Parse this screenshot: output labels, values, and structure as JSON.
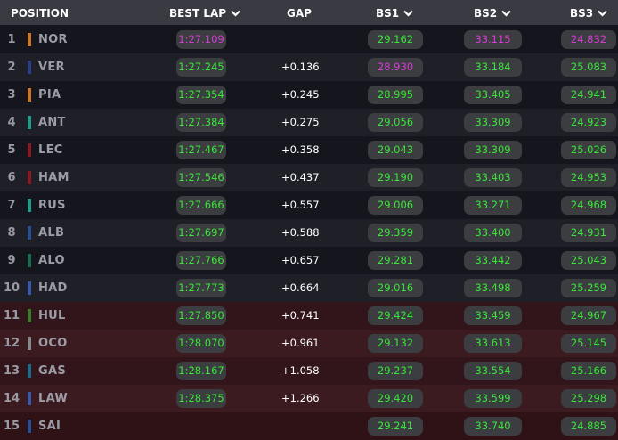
{
  "header": {
    "position": "POSITION",
    "best_lap": "BEST LAP",
    "gap": "GAP",
    "bs1": "BS1",
    "bs2": "BS2",
    "bs3": "BS3"
  },
  "colors": {
    "green": "#39e639",
    "purple": "#d93ad9"
  },
  "rows": [
    {
      "pos": "1",
      "driver": "NOR",
      "team_color": "#c8782a",
      "best": "1:27.109",
      "best_purple": true,
      "gap": "",
      "bs1": "29.162",
      "bs1_purple": false,
      "bs2": "33.115",
      "bs2_purple": true,
      "bs3": "24.832",
      "bs3_purple": true
    },
    {
      "pos": "2",
      "driver": "VER",
      "team_color": "#2b3f84",
      "best": "1:27.245",
      "best_purple": false,
      "gap": "+0.136",
      "bs1": "28.930",
      "bs1_purple": true,
      "bs2": "33.184",
      "bs2_purple": false,
      "bs3": "25.083",
      "bs3_purple": false
    },
    {
      "pos": "3",
      "driver": "PIA",
      "team_color": "#c8782a",
      "best": "1:27.354",
      "best_purple": false,
      "gap": "+0.245",
      "bs1": "28.995",
      "bs1_purple": false,
      "bs2": "33.405",
      "bs2_purple": false,
      "bs3": "24.941",
      "bs3_purple": false
    },
    {
      "pos": "4",
      "driver": "ANT",
      "team_color": "#1f9c8a",
      "best": "1:27.384",
      "best_purple": false,
      "gap": "+0.275",
      "bs1": "29.056",
      "bs1_purple": false,
      "bs2": "33.309",
      "bs2_purple": false,
      "bs3": "24.923",
      "bs3_purple": false
    },
    {
      "pos": "5",
      "driver": "LEC",
      "team_color": "#8a1a22",
      "best": "1:27.467",
      "best_purple": false,
      "gap": "+0.358",
      "bs1": "29.043",
      "bs1_purple": false,
      "bs2": "33.309",
      "bs2_purple": false,
      "bs3": "25.026",
      "bs3_purple": false
    },
    {
      "pos": "6",
      "driver": "HAM",
      "team_color": "#8a1a22",
      "best": "1:27.546",
      "best_purple": false,
      "gap": "+0.437",
      "bs1": "29.190",
      "bs1_purple": false,
      "bs2": "33.403",
      "bs2_purple": false,
      "bs3": "24.953",
      "bs3_purple": false
    },
    {
      "pos": "7",
      "driver": "RUS",
      "team_color": "#1f9c8a",
      "best": "1:27.666",
      "best_purple": false,
      "gap": "+0.557",
      "bs1": "29.006",
      "bs1_purple": false,
      "bs2": "33.271",
      "bs2_purple": false,
      "bs3": "24.968",
      "bs3_purple": false
    },
    {
      "pos": "8",
      "driver": "ALB",
      "team_color": "#2a4e8e",
      "best": "1:27.697",
      "best_purple": false,
      "gap": "+0.588",
      "bs1": "29.359",
      "bs1_purple": false,
      "bs2": "33.400",
      "bs2_purple": false,
      "bs3": "24.931",
      "bs3_purple": false
    },
    {
      "pos": "9",
      "driver": "ALO",
      "team_color": "#1e6a4c",
      "best": "1:27.766",
      "best_purple": false,
      "gap": "+0.657",
      "bs1": "29.281",
      "bs1_purple": false,
      "bs2": "33.442",
      "bs2_purple": false,
      "bs3": "25.043",
      "bs3_purple": false
    },
    {
      "pos": "10",
      "driver": "HAD",
      "team_color": "#3a5aa8",
      "best": "1:27.773",
      "best_purple": false,
      "gap": "+0.664",
      "bs1": "29.016",
      "bs1_purple": false,
      "bs2": "33.498",
      "bs2_purple": false,
      "bs3": "25.259",
      "bs3_purple": false
    },
    {
      "pos": "11",
      "driver": "HUL",
      "team_color": "#3c7a2c",
      "best": "1:27.850",
      "best_purple": false,
      "gap": "+0.741",
      "bs1": "29.424",
      "bs1_purple": false,
      "bs2": "33.459",
      "bs2_purple": false,
      "bs3": "24.967",
      "bs3_purple": false
    },
    {
      "pos": "12",
      "driver": "OCO",
      "team_color": "#8a8a8a",
      "best": "1:28.070",
      "best_purple": false,
      "gap": "+0.961",
      "bs1": "29.132",
      "bs1_purple": false,
      "bs2": "33.613",
      "bs2_purple": false,
      "bs3": "25.145",
      "bs3_purple": false
    },
    {
      "pos": "13",
      "driver": "GAS",
      "team_color": "#1f6a88",
      "best": "1:28.167",
      "best_purple": false,
      "gap": "+1.058",
      "bs1": "29.237",
      "bs1_purple": false,
      "bs2": "33.554",
      "bs2_purple": false,
      "bs3": "25.166",
      "bs3_purple": false
    },
    {
      "pos": "14",
      "driver": "LAW",
      "team_color": "#3a5aa8",
      "best": "1:28.375",
      "best_purple": false,
      "gap": "+1.266",
      "bs1": "29.420",
      "bs1_purple": false,
      "bs2": "33.599",
      "bs2_purple": false,
      "bs3": "25.298",
      "bs3_purple": false
    },
    {
      "pos": "15",
      "driver": "SAI",
      "team_color": "#2a4e8e",
      "best": "",
      "best_purple": false,
      "gap": "",
      "bs1": "29.241",
      "bs1_purple": false,
      "bs2": "33.740",
      "bs2_purple": false,
      "bs3": "24.885",
      "bs3_purple": false
    }
  ]
}
